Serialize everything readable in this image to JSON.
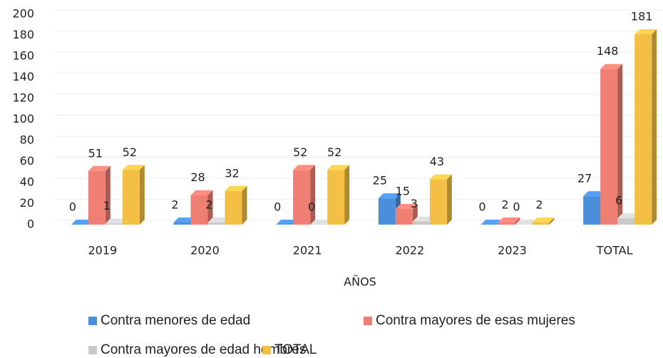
{
  "chart_data": {
    "type": "bar3d",
    "categories": [
      "2019",
      "2020",
      "2021",
      "2022",
      "2023",
      "TOTAL"
    ],
    "series": [
      {
        "name": "Contra menores de edad",
        "color": "#4a8fdb",
        "values": [
          0,
          2,
          0,
          25,
          0,
          27
        ]
      },
      {
        "name": "Contra mayores de esas mujeres",
        "color": "#ef7f72",
        "values": [
          51,
          28,
          52,
          15,
          2,
          148
        ]
      },
      {
        "name": "Contra mayores de edad hombres",
        "color": "#c9c9cc",
        "values": [
          1,
          2,
          0,
          3,
          0,
          6
        ]
      },
      {
        "name": "TOTAL",
        "color": "#f4bf45",
        "values": [
          52,
          32,
          52,
          43,
          2,
          181
        ]
      }
    ],
    "xlabel": "AÑOS",
    "ylim": [
      0,
      200
    ],
    "yticks": [
      0,
      20,
      40,
      60,
      80,
      100,
      120,
      140,
      160,
      180,
      200
    ],
    "grid": true
  }
}
